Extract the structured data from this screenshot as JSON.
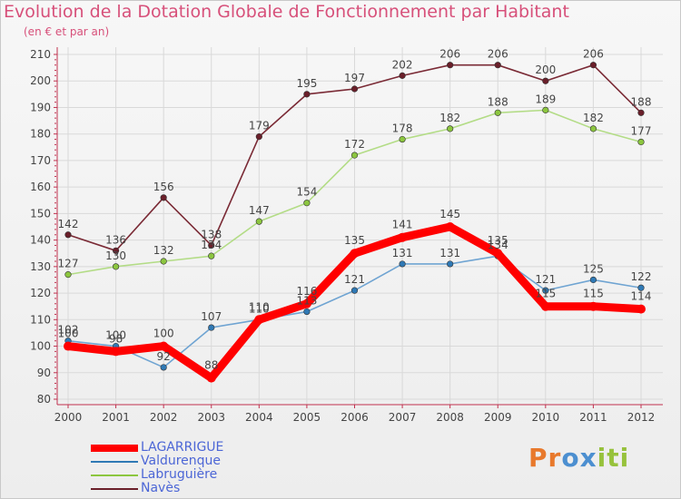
{
  "header": {
    "title": "Evolution de la Dotation Globale de Fonctionnement par Habitant",
    "subtitle": "(en € et par an)"
  },
  "logo": {
    "text": "Proxiti",
    "letters": [
      "P",
      "r",
      "o",
      "x",
      "i",
      "t",
      "i"
    ]
  },
  "colors": {
    "title": "#d7507a",
    "axis": "#c0324f",
    "grid": "#d9d9d9",
    "label": "#444444",
    "logo_letters": [
      "#e8792c",
      "#e8792c",
      "#4c8fd0",
      "#4c8fd0",
      "#97c23c",
      "#97c23c",
      "#97c23c"
    ]
  },
  "chart_data": {
    "type": "line",
    "title": "Evolution de la Dotation Globale de Fonctionnement par Habitant",
    "subtitle": "(en € et par an)",
    "xlabel": "",
    "ylabel": "",
    "x": [
      "2000",
      "2001",
      "2002",
      "2003",
      "2004",
      "2005",
      "2006",
      "2007",
      "2008",
      "2009",
      "2010",
      "2011",
      "2012"
    ],
    "ylim": [
      80,
      210
    ],
    "yticks": [
      80,
      90,
      100,
      110,
      120,
      130,
      140,
      150,
      160,
      170,
      180,
      190,
      200,
      210
    ],
    "grid": true,
    "legend_position": "bottom-left",
    "series": [
      {
        "name": "LAGARRIGUE",
        "color": "#ff0000",
        "marker": "#ff0000",
        "thick": true,
        "values": [
          100,
          98,
          100,
          88,
          110,
          116,
          135,
          141,
          145,
          135,
          115,
          115,
          114
        ]
      },
      {
        "name": "Valdurenque",
        "color": "#6fa4d2",
        "marker": "#2f79b5",
        "thick": false,
        "values": [
          102,
          100,
          92,
          107,
          110,
          113,
          121,
          131,
          131,
          134,
          121,
          125,
          122
        ]
      },
      {
        "name": "Labruguière",
        "color": "#b3dc86",
        "marker": "#8cc63f",
        "thick": false,
        "values": [
          127,
          130,
          132,
          134,
          147,
          154,
          172,
          178,
          182,
          188,
          189,
          182,
          177
        ]
      },
      {
        "name": "Navès",
        "color": "#7a2a35",
        "marker": "#6a1f2a",
        "thick": false,
        "values": [
          142,
          136,
          156,
          138,
          179,
          195,
          197,
          202,
          206,
          206,
          200,
          206,
          188
        ]
      }
    ]
  }
}
